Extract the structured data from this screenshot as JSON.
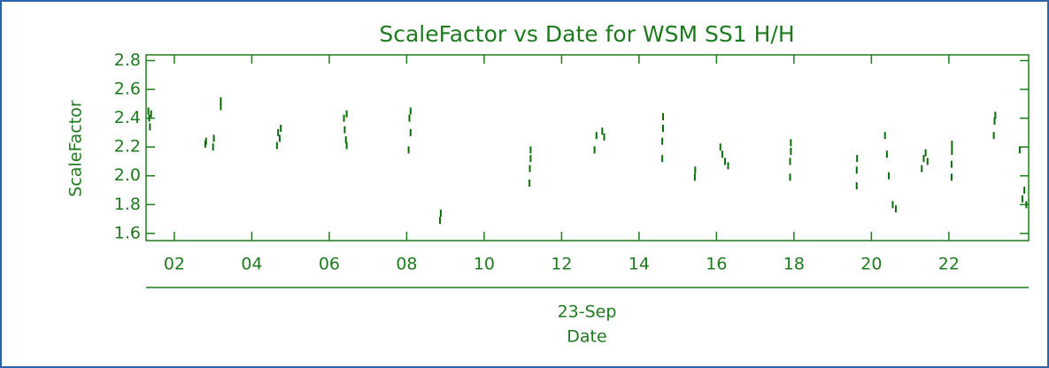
{
  "chart_data": {
    "type": "scatter",
    "title": "ScaleFactor vs Date for WSM SS1 H/H",
    "x_label": "Date",
    "x_sublabel": "23-Sep",
    "y_label": "ScaleFactor",
    "color": "#0b6b0b",
    "xlim": [
      1.27,
      24.06
    ],
    "ylim": [
      1.55,
      2.84
    ],
    "xticks": [
      {
        "value": 2,
        "label": "02"
      },
      {
        "value": 4,
        "label": "04"
      },
      {
        "value": 6,
        "label": "06"
      },
      {
        "value": 8,
        "label": "08"
      },
      10,
      12,
      14,
      16,
      18,
      20,
      22
    ],
    "yticks": [
      {
        "value": 1.6,
        "label": "1.6"
      },
      {
        "value": 1.8,
        "label": "1.8"
      },
      {
        "value": 2.0,
        "label": "2.0"
      },
      {
        "value": 2.2,
        "label": "2.2"
      },
      {
        "value": 2.4,
        "label": "2.4"
      },
      {
        "value": 2.6,
        "label": "2.6"
      },
      {
        "value": 2.8,
        "label": "2.8"
      }
    ],
    "x": [
      1.33,
      1.35,
      1.37,
      1.4,
      2.8,
      2.82,
      3.0,
      3.02,
      3.2,
      3.2,
      4.65,
      4.68,
      4.72,
      4.75,
      6.38,
      6.4,
      6.43,
      6.45,
      6.45,
      8.05,
      8.07,
      8.1,
      8.1,
      8.86,
      8.88,
      11.17,
      11.18,
      11.2,
      11.2,
      12.85,
      12.9,
      13.05,
      13.1,
      14.6,
      14.6,
      14.62,
      14.62,
      15.44,
      15.45,
      16.1,
      16.15,
      16.22,
      16.3,
      17.9,
      17.9,
      17.92,
      17.92,
      19.62,
      19.62,
      19.63,
      20.35,
      20.4,
      20.45,
      20.55,
      20.63,
      21.3,
      21.35,
      21.4,
      21.45,
      22.07,
      22.07,
      22.08,
      22.08,
      23.16,
      23.18,
      23.2,
      23.83,
      23.9,
      23.95,
      24.0
    ],
    "values": [
      2.45,
      2.4,
      2.34,
      2.43,
      2.22,
      2.24,
      2.2,
      2.26,
      2.48,
      2.52,
      2.21,
      2.3,
      2.26,
      2.33,
      2.4,
      2.32,
      2.25,
      2.21,
      2.43,
      2.18,
      2.4,
      2.45,
      2.3,
      1.69,
      1.74,
      1.95,
      2.05,
      2.12,
      2.18,
      2.18,
      2.28,
      2.31,
      2.27,
      2.12,
      2.24,
      2.33,
      2.41,
      1.99,
      2.04,
      2.2,
      2.15,
      2.1,
      2.07,
      1.99,
      2.1,
      2.17,
      2.23,
      1.93,
      2.04,
      2.12,
      2.28,
      2.15,
      2.0,
      1.8,
      1.77,
      2.05,
      2.12,
      2.16,
      2.1,
      1.99,
      2.08,
      2.17,
      2.22,
      2.28,
      2.38,
      2.42,
      2.18,
      1.84,
      1.9,
      1.8
    ]
  }
}
